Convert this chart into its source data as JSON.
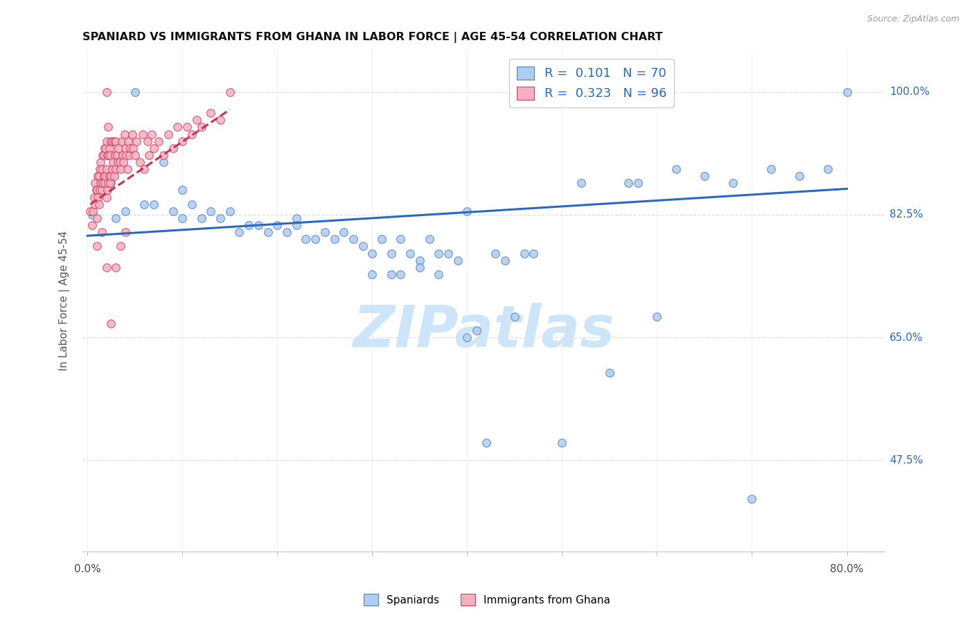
{
  "title": "SPANIARD VS IMMIGRANTS FROM GHANA IN LABOR FORCE | AGE 45-54 CORRELATION CHART",
  "source": "Source: ZipAtlas.com",
  "ylabel": "In Labor Force | Age 45-54",
  "ytick_vals": [
    0.475,
    0.65,
    0.825,
    1.0
  ],
  "ytick_labels": [
    "47.5%",
    "65.0%",
    "82.5%",
    "100.0%"
  ],
  "ymin": 0.345,
  "ymax": 1.06,
  "xmin": -0.005,
  "xmax": 0.84,
  "legend_blue": "R =  0.101   N = 70",
  "legend_pink": "R =  0.323   N = 96",
  "blue_face_color": "#b0ccee",
  "pink_face_color": "#f5b0c0",
  "blue_edge_color": "#4a82cc",
  "pink_edge_color": "#d04060",
  "blue_trend_color": "#2868c0",
  "pink_trend_color": "#c83050",
  "watermark": "ZIPatlas",
  "watermark_color": "#cde5f8",
  "label_spaniards": "Spaniards",
  "label_ghana": "Immigrants from Ghana",
  "blue_x": [
    0.005,
    0.02,
    0.025,
    0.03,
    0.04,
    0.05,
    0.06,
    0.07,
    0.08,
    0.09,
    0.1,
    0.1,
    0.11,
    0.12,
    0.13,
    0.14,
    0.15,
    0.16,
    0.17,
    0.18,
    0.19,
    0.2,
    0.21,
    0.22,
    0.22,
    0.23,
    0.24,
    0.25,
    0.26,
    0.27,
    0.28,
    0.29,
    0.3,
    0.31,
    0.32,
    0.33,
    0.34,
    0.35,
    0.36,
    0.37,
    0.38,
    0.39,
    0.4,
    0.41,
    0.42,
    0.43,
    0.44,
    0.45,
    0.46,
    0.47,
    0.5,
    0.52,
    0.55,
    0.57,
    0.58,
    0.6,
    0.62,
    0.65,
    0.68,
    0.7,
    0.72,
    0.75,
    0.78,
    0.8,
    0.33,
    0.35,
    0.37,
    0.3,
    0.32,
    0.4
  ],
  "blue_y": [
    0.825,
    0.88,
    0.87,
    0.82,
    0.83,
    1.0,
    0.84,
    0.84,
    0.9,
    0.83,
    0.82,
    0.86,
    0.84,
    0.82,
    0.83,
    0.82,
    0.83,
    0.8,
    0.81,
    0.81,
    0.8,
    0.81,
    0.8,
    0.82,
    0.81,
    0.79,
    0.79,
    0.8,
    0.79,
    0.8,
    0.79,
    0.78,
    0.77,
    0.79,
    0.77,
    0.79,
    0.77,
    0.76,
    0.79,
    0.77,
    0.77,
    0.76,
    0.65,
    0.66,
    0.5,
    0.77,
    0.76,
    0.68,
    0.77,
    0.77,
    0.5,
    0.87,
    0.6,
    0.87,
    0.87,
    0.68,
    0.89,
    0.88,
    0.87,
    0.42,
    0.89,
    0.88,
    0.89,
    1.0,
    0.74,
    0.75,
    0.74,
    0.74,
    0.74,
    0.83
  ],
  "pink_x": [
    0.003,
    0.005,
    0.006,
    0.007,
    0.008,
    0.008,
    0.009,
    0.01,
    0.01,
    0.011,
    0.011,
    0.012,
    0.012,
    0.013,
    0.013,
    0.014,
    0.014,
    0.015,
    0.015,
    0.016,
    0.016,
    0.017,
    0.017,
    0.018,
    0.018,
    0.019,
    0.019,
    0.02,
    0.02,
    0.02,
    0.021,
    0.021,
    0.022,
    0.022,
    0.022,
    0.023,
    0.023,
    0.024,
    0.024,
    0.025,
    0.025,
    0.026,
    0.026,
    0.027,
    0.028,
    0.028,
    0.029,
    0.03,
    0.03,
    0.031,
    0.032,
    0.033,
    0.034,
    0.035,
    0.036,
    0.037,
    0.038,
    0.039,
    0.04,
    0.041,
    0.042,
    0.043,
    0.044,
    0.045,
    0.047,
    0.048,
    0.05,
    0.052,
    0.055,
    0.058,
    0.06,
    0.063,
    0.065,
    0.068,
    0.07,
    0.075,
    0.08,
    0.085,
    0.09,
    0.095,
    0.1,
    0.105,
    0.11,
    0.115,
    0.12,
    0.13,
    0.14,
    0.15,
    0.02,
    0.025,
    0.03,
    0.035,
    0.04,
    0.01,
    0.015,
    0.02
  ],
  "pink_y": [
    0.83,
    0.81,
    0.83,
    0.85,
    0.84,
    0.87,
    0.86,
    0.82,
    0.86,
    0.85,
    0.88,
    0.84,
    0.88,
    0.86,
    0.89,
    0.87,
    0.9,
    0.86,
    0.89,
    0.87,
    0.91,
    0.88,
    0.91,
    0.87,
    0.92,
    0.88,
    0.92,
    0.85,
    0.89,
    0.93,
    0.86,
    0.91,
    0.87,
    0.91,
    0.95,
    0.88,
    0.92,
    0.87,
    0.91,
    0.88,
    0.93,
    0.89,
    0.93,
    0.9,
    0.88,
    0.93,
    0.91,
    0.89,
    0.93,
    0.91,
    0.9,
    0.92,
    0.9,
    0.89,
    0.93,
    0.91,
    0.9,
    0.94,
    0.92,
    0.91,
    0.89,
    0.93,
    0.91,
    0.92,
    0.94,
    0.92,
    0.91,
    0.93,
    0.9,
    0.94,
    0.89,
    0.93,
    0.91,
    0.94,
    0.92,
    0.93,
    0.91,
    0.94,
    0.92,
    0.95,
    0.93,
    0.95,
    0.94,
    0.96,
    0.95,
    0.97,
    0.96,
    1.0,
    1.0,
    0.67,
    0.75,
    0.78,
    0.8,
    0.78,
    0.8,
    0.75
  ]
}
